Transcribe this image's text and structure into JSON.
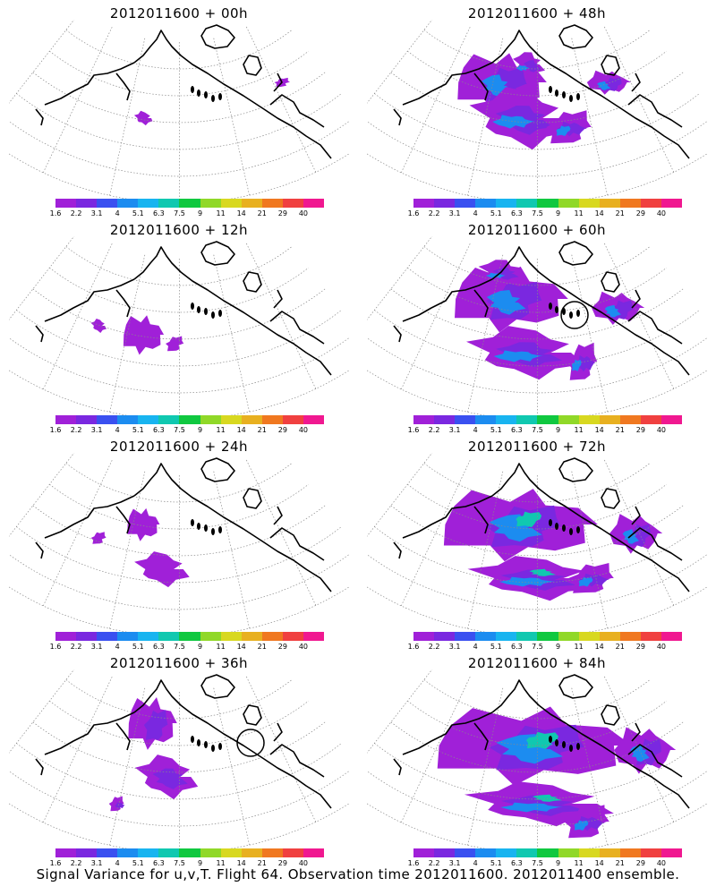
{
  "figure": {
    "caption": "Signal Variance for u,v,T. Flight 64. Observation time 2012011600. 2012011400 ensemble."
  },
  "panels": [
    {
      "title": "2012011600 + 00h",
      "lead": 0,
      "target_circle": false
    },
    {
      "title": "2012011600 + 48h",
      "lead": 48,
      "target_circle": false
    },
    {
      "title": "2012011600 + 12h",
      "lead": 12,
      "target_circle": false
    },
    {
      "title": "2012011600 + 60h",
      "lead": 60,
      "target_circle": true
    },
    {
      "title": "2012011600 + 24h",
      "lead": 24,
      "target_circle": false
    },
    {
      "title": "2012011600 + 72h",
      "lead": 72,
      "target_circle": false
    },
    {
      "title": "2012011600 + 36h",
      "lead": 36,
      "target_circle": true
    },
    {
      "title": "2012011600 + 84h",
      "lead": 84,
      "target_circle": false
    }
  ],
  "colorbar": {
    "labels": [
      "1.6",
      "2.2",
      "3.1",
      "4",
      "5.1",
      "6.3",
      "7.5",
      "9",
      "11",
      "14",
      "21",
      "29",
      "40"
    ],
    "colors": [
      "#a020d8",
      "#7a28e0",
      "#3a50f0",
      "#1c8cf0",
      "#18b4f0",
      "#10c8b0",
      "#10c840",
      "#90d828",
      "#d8d820",
      "#e8b020",
      "#f07820",
      "#f04040",
      "#f01890"
    ]
  },
  "field_colors": {
    "outline": "#000000",
    "grid": "#8a8a8a",
    "land": "#000000"
  }
}
